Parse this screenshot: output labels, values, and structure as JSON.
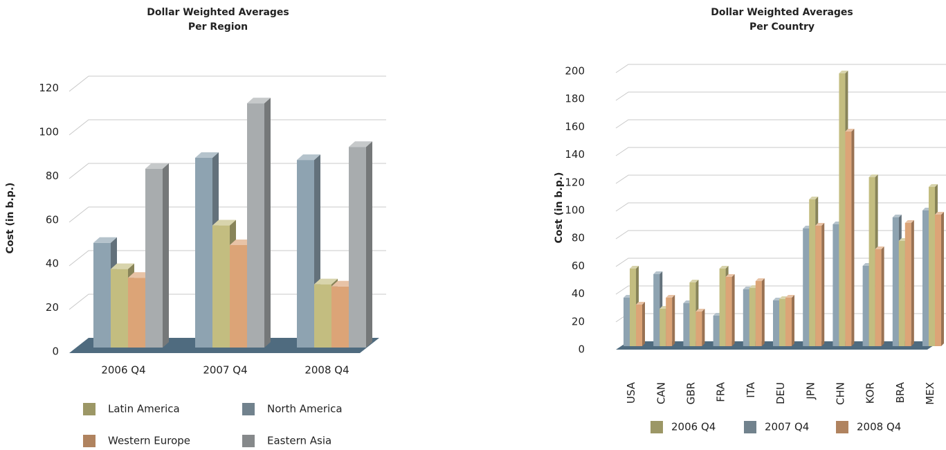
{
  "chart_data": [
    {
      "type": "bar",
      "title": "Dollar Weighted Averages",
      "subtitle": "Per Region",
      "y_label": "Cost (in b.p.)",
      "categories": [
        "2006 Q4",
        "2007 Q4",
        "2008 Q4"
      ],
      "series": [
        {
          "name": "North America",
          "color": "#8ea3b1",
          "values": [
            48,
            87,
            86
          ]
        },
        {
          "name": "Latin America",
          "color": "#c3bd80",
          "values": [
            36,
            56,
            29
          ]
        },
        {
          "name": "Western Europe",
          "color": "#dca477",
          "values": [
            32,
            47,
            28
          ]
        },
        {
          "name": "Eastern Asia",
          "color": "#a8acae",
          "values": [
            82,
            112,
            92
          ]
        }
      ],
      "ylim": [
        0,
        120
      ],
      "yticks": [
        0,
        20,
        40,
        60,
        80,
        100,
        120
      ],
      "grid": true
    },
    {
      "type": "bar",
      "title": "Dollar Weighted Averages",
      "subtitle": "Per Country",
      "y_label": "Cost (in b.p.)",
      "categories": [
        "USA",
        "CAN",
        "GBR",
        "FRA",
        "ITA",
        "DEU",
        "JPN",
        "CHN",
        "KOR",
        "BRA",
        "MEX"
      ],
      "series": [
        {
          "name": "2007 Q4",
          "color": "#8ea3b1",
          "values": [
            35,
            52,
            31,
            22,
            41,
            33,
            85,
            88,
            58,
            93,
            98
          ]
        },
        {
          "name": "2006 Q4",
          "color": "#c3bd80",
          "values": [
            56,
            27,
            46,
            56,
            42,
            34,
            106,
            197,
            122,
            76,
            115
          ]
        },
        {
          "name": "2008 Q4",
          "color": "#dca477",
          "values": [
            30,
            35,
            25,
            50,
            47,
            35,
            87,
            155,
            70,
            89,
            95
          ]
        }
      ],
      "ylim": [
        0,
        200
      ],
      "yticks": [
        0,
        20,
        40,
        60,
        80,
        100,
        120,
        140,
        160,
        180,
        200
      ],
      "grid": true
    }
  ]
}
